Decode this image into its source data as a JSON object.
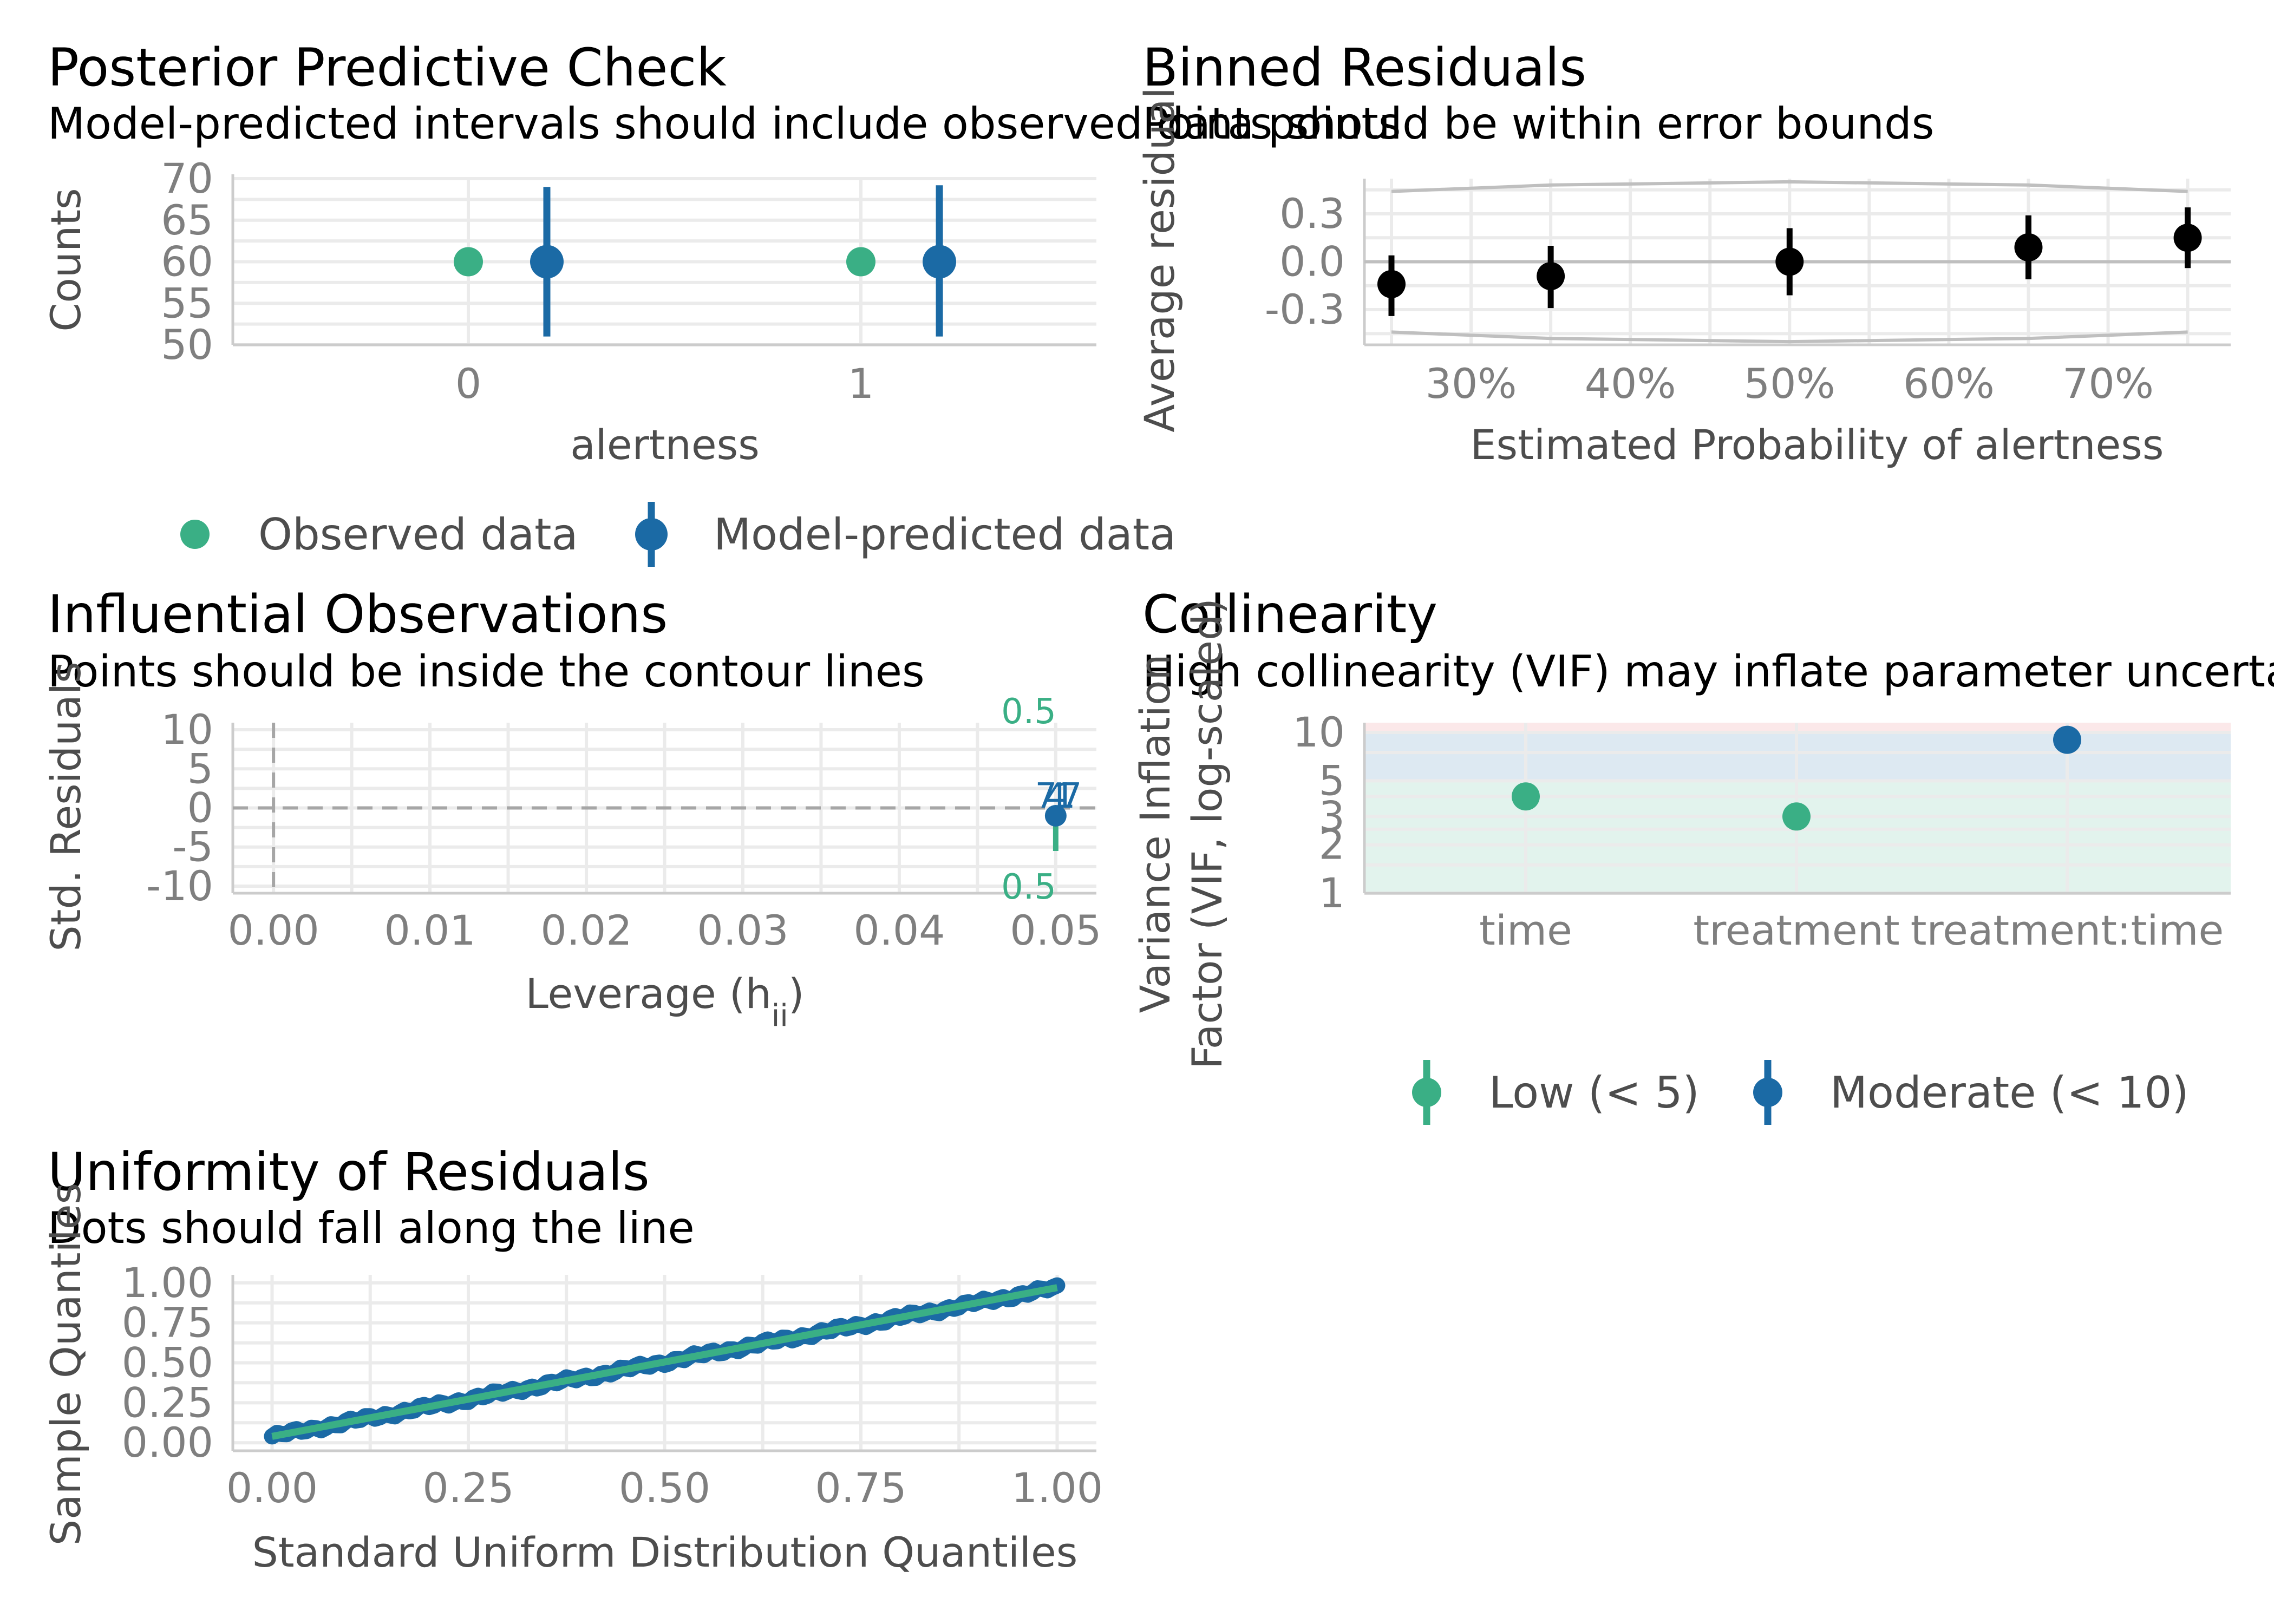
{
  "colors": {
    "observed": "#3aaf85",
    "predicted": "#1b6aa5",
    "black": "#000000",
    "grid": "#ebebeb",
    "bounds": "#bfbfbf",
    "ref_line": "#a6a6a6",
    "band_low": "#3aaf85",
    "band_moderate": "#1b6aa5",
    "band_high": "#e5646d"
  },
  "panels": {
    "ppc": {
      "title": "Posterior Predictive Check",
      "subtitle": "Model-predicted intervals should include observed data points",
      "legend": [
        "Observed data",
        "Model-predicted data"
      ]
    },
    "binned": {
      "title": "Binned Residuals",
      "subtitle": "Points should be within error bounds"
    },
    "influential": {
      "title": "Influential Observations",
      "subtitle": "Points should be inside the contour lines",
      "contour_labels": [
        "0.5",
        "0.5"
      ],
      "point_labels": [
        "7",
        "4",
        "1",
        "7"
      ]
    },
    "collinearity": {
      "title": "Collinearity",
      "subtitle": "High collinearity (VIF) may inflate parameter uncertainty",
      "legend": [
        "Low (< 5)",
        "Moderate (< 10)"
      ]
    },
    "uniformity": {
      "title": "Uniformity of Residuals",
      "subtitle": "Dots should fall along the line"
    }
  },
  "chart_data": [
    {
      "id": "ppc",
      "type": "scatter",
      "title": "Posterior Predictive Check",
      "xlabel": "alertness",
      "ylabel": "Counts",
      "categories": [
        "0",
        "1"
      ],
      "ylim": [
        50,
        70
      ],
      "yticks": [
        50,
        55,
        60,
        65,
        70
      ],
      "series": [
        {
          "name": "Observed data",
          "values": [
            60,
            60
          ]
        },
        {
          "name": "Model-predicted data",
          "values": [
            60,
            60
          ],
          "lower": [
            51,
            51
          ],
          "upper": [
            69,
            69.2
          ]
        }
      ]
    },
    {
      "id": "binned",
      "type": "scatter",
      "title": "Binned Residuals",
      "xlabel": "Estimated Probability of alertness",
      "ylabel": "Average residual",
      "xlim": [
        0.233,
        0.777
      ],
      "ylim": [
        -0.52,
        0.52
      ],
      "xticks": [
        0.3,
        0.4,
        0.5,
        0.6,
        0.7
      ],
      "xtick_labels": [
        "30%",
        "40%",
        "50%",
        "60%",
        "70%"
      ],
      "yticks": [
        -0.3,
        0.0,
        0.3
      ],
      "ytick_labels": [
        "-0.3",
        "0.0",
        "0.3"
      ],
      "points": [
        {
          "x": 0.25,
          "y": -0.14,
          "lo": -0.34,
          "hi": 0.04
        },
        {
          "x": 0.35,
          "y": -0.09,
          "lo": -0.29,
          "hi": 0.1
        },
        {
          "x": 0.5,
          "y": 0.0,
          "lo": -0.21,
          "hi": 0.21
        },
        {
          "x": 0.65,
          "y": 0.09,
          "lo": -0.11,
          "hi": 0.29
        },
        {
          "x": 0.75,
          "y": 0.15,
          "lo": -0.04,
          "hi": 0.34
        }
      ],
      "bounds_upper": [
        [
          0.25,
          0.44
        ],
        [
          0.35,
          0.48
        ],
        [
          0.5,
          0.5
        ],
        [
          0.65,
          0.48
        ],
        [
          0.75,
          0.44
        ]
      ],
      "bounds_lower": [
        [
          0.25,
          -0.44
        ],
        [
          0.35,
          -0.48
        ],
        [
          0.5,
          -0.5
        ],
        [
          0.65,
          -0.48
        ],
        [
          0.75,
          -0.44
        ]
      ]
    },
    {
      "id": "influential",
      "type": "scatter",
      "title": "Influential Observations",
      "xlabel": "Leverage (hii)",
      "ylabel": "Std. Residuals",
      "xlim": [
        -0.0026,
        0.0526
      ],
      "ylim": [
        -10.9,
        10.9
      ],
      "xticks": [
        0.0,
        0.01,
        0.02,
        0.03,
        0.04,
        0.05
      ],
      "xtick_labels": [
        "0.00",
        "0.01",
        "0.02",
        "0.03",
        "0.04",
        "0.05"
      ],
      "yticks": [
        -10,
        -5,
        0,
        5,
        10
      ],
      "ytick_labels": [
        "-10",
        "-5",
        "0",
        "5",
        "10"
      ],
      "points": [
        {
          "x": 0.05,
          "y": -1.0,
          "lo": -5.5,
          "hi": -0.5
        }
      ]
    },
    {
      "id": "collinearity",
      "type": "scatter",
      "title": "Collinearity",
      "xlabel": "",
      "ylabel": "Variance Inflation Factor (VIF, log-scaled)",
      "y_scale": "log",
      "ylim": [
        1,
        11.5
      ],
      "yticks": [
        1,
        2,
        3,
        5,
        10
      ],
      "categories": [
        "time",
        "treatment",
        "treatment:time"
      ],
      "points": [
        {
          "category": "time",
          "vif": 4.0,
          "lo": 3.4,
          "hi": 4.7,
          "group": "Low (< 5)"
        },
        {
          "category": "treatment",
          "vif": 3.0,
          "lo": 2.6,
          "hi": 3.6,
          "group": "Low (< 5)"
        },
        {
          "category": "treatment:time",
          "vif": 9.0,
          "lo": 7.6,
          "hi": 10.6,
          "group": "Moderate (< 10)"
        }
      ]
    },
    {
      "id": "uniformity",
      "type": "line",
      "title": "Uniformity of Residuals",
      "xlabel": "Standard Uniform Distribution Quantiles",
      "ylabel": "Sample Quantiles",
      "xlim": [
        -0.05,
        1.05
      ],
      "ylim": [
        -0.05,
        1.05
      ],
      "xticks": [
        0.0,
        0.25,
        0.5,
        0.75,
        1.0
      ],
      "xtick_labels": [
        "0.00",
        "0.25",
        "0.50",
        "0.75",
        "1.00"
      ],
      "yticks": [
        0.0,
        0.25,
        0.5,
        0.75,
        1.0
      ],
      "ytick_labels": [
        "0.00",
        "0.25",
        "0.50",
        "0.75",
        "1.00"
      ],
      "series": [
        {
          "name": "",
          "x": [
            0,
            0.5,
            1
          ],
          "y": [
            0.04,
            0.51,
            0.97
          ]
        }
      ]
    }
  ]
}
